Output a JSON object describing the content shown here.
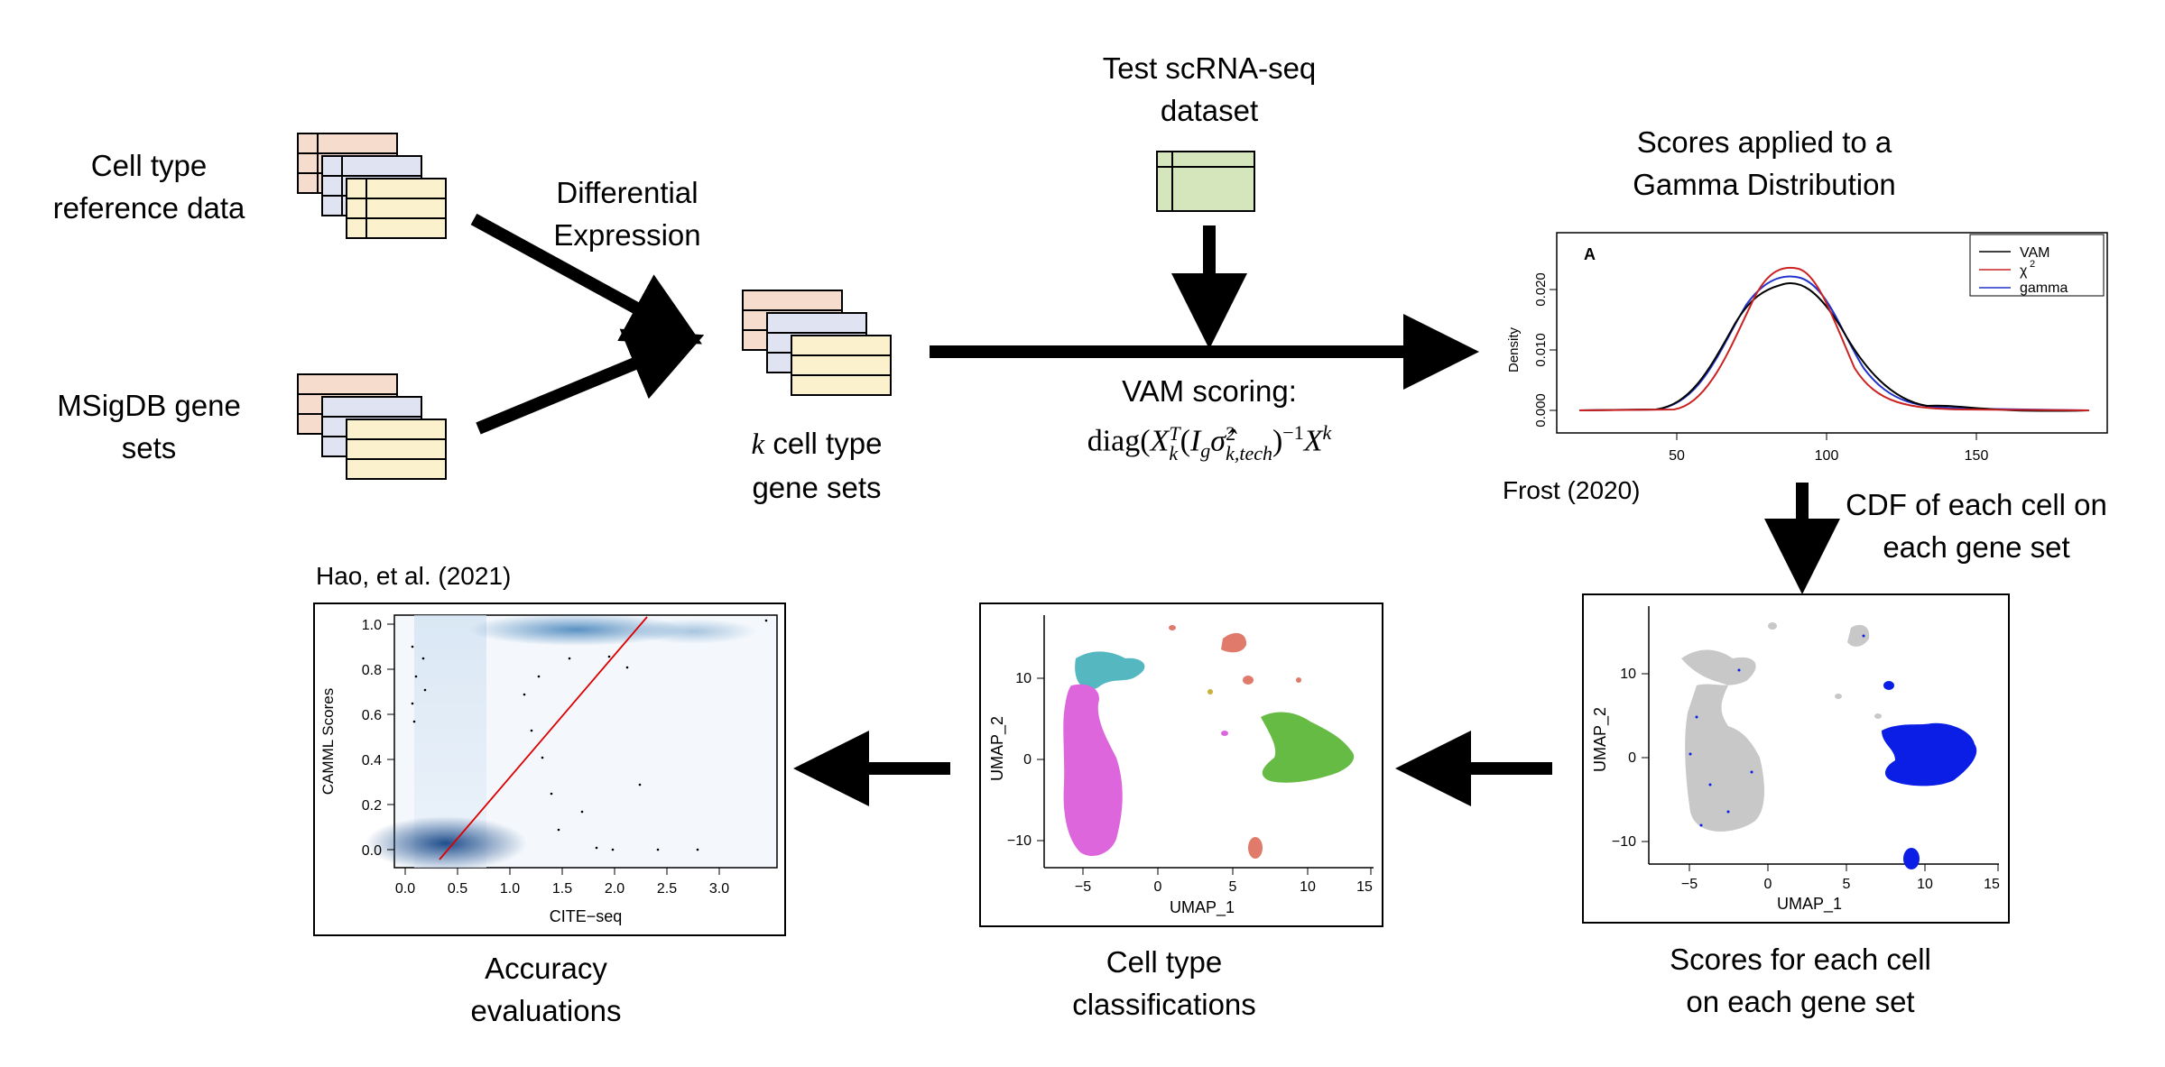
{
  "labels": {
    "celltype_ref": [
      "Cell type",
      "reference data"
    ],
    "msigdb": [
      "MSigDB gene",
      "sets"
    ],
    "diffexpr": [
      "Differential",
      "Expression"
    ],
    "genesets_k": "k",
    "genesets": [
      "cell type",
      "gene sets"
    ],
    "test_dataset": [
      "Test scRNA-seq",
      "dataset"
    ],
    "vam_scoring": "VAM scoring:",
    "formula": {
      "diag": "diag(",
      "X": "X",
      "k_sub": "k",
      "T_sup": "T",
      "lparen": "(",
      "I": "I",
      "g_sub": "g",
      "sigma": "σ̂",
      "two_sup": "2",
      "ktech_sub": "k,tech",
      "rparen": ")",
      "neg1_sup": "−1",
      "X2": "X",
      "k_sup": "k"
    },
    "gamma_title": [
      "Scores applied to a",
      "Gamma Distribution"
    ],
    "frost": "Frost (2020)",
    "cdf": [
      "CDF of each cell on",
      "each gene set"
    ],
    "scores_each": [
      "Scores for each cell",
      "on each gene set"
    ],
    "celltype_class": [
      "Cell type",
      "classifications"
    ],
    "accuracy": [
      "Accuracy",
      "evaluations"
    ],
    "hao": "Hao, et al. (2021)"
  },
  "density_plot": {
    "panel_letter": "A",
    "ylabel": "Density",
    "yticks": [
      "0.000",
      "0.010",
      "0.020"
    ],
    "xticks": [
      "50",
      "100",
      "150"
    ],
    "legend": [
      "VAM",
      "χ",
      "gamma"
    ],
    "legend_sup": "2",
    "colors": {
      "VAM": "#000000",
      "chi2": "#cc2222",
      "gamma": "#2233cc"
    }
  },
  "umap_scores": {
    "xlabel": "UMAP_1",
    "ylabel": "UMAP_2",
    "xticks": [
      "−5",
      "0",
      "5",
      "10",
      "15"
    ],
    "yticks": [
      "10",
      "0",
      "−10"
    ],
    "colors": {
      "low": "#c8c8c8",
      "high": "#0a1ee6"
    }
  },
  "umap_class": {
    "xlabel": "UMAP_1",
    "ylabel": "UMAP_2",
    "xticks": [
      "−5",
      "0",
      "5",
      "10",
      "15"
    ],
    "yticks": [
      "10",
      "0",
      "−10"
    ],
    "colors": {
      "magenta": "#dd66dd",
      "teal": "#55b8c0",
      "green": "#66bb44",
      "salmon": "#e07a6a"
    }
  },
  "accuracy_plot": {
    "xlabel": "CITE−seq",
    "ylabel": "CAMML Scores",
    "xticks": [
      "0.0",
      "0.5",
      "1.0",
      "1.5",
      "2.0",
      "2.5",
      "3.0"
    ],
    "yticks": [
      "0.0",
      "0.2",
      "0.4",
      "0.6",
      "0.8",
      "1.0"
    ],
    "line_color": "#dd0000"
  }
}
